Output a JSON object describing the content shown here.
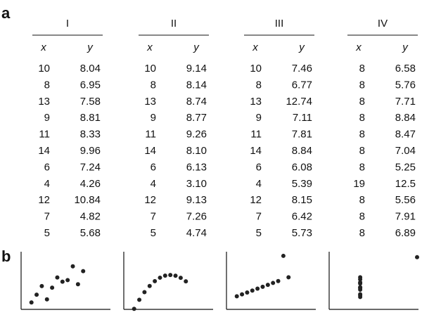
{
  "panel_a": {
    "label": "a",
    "datasets": [
      {
        "title": "I",
        "columns": [
          "x",
          "y"
        ],
        "rows": [
          [
            "10",
            "8.04"
          ],
          [
            "8",
            "6.95"
          ],
          [
            "13",
            "7.58"
          ],
          [
            "9",
            "8.81"
          ],
          [
            "11",
            "8.33"
          ],
          [
            "14",
            "9.96"
          ],
          [
            "6",
            "7.24"
          ],
          [
            "4",
            "4.26"
          ],
          [
            "12",
            "10.84"
          ],
          [
            "7",
            "4.82"
          ],
          [
            "5",
            "5.68"
          ]
        ]
      },
      {
        "title": "II",
        "columns": [
          "x",
          "y"
        ],
        "rows": [
          [
            "10",
            "9.14"
          ],
          [
            "8",
            "8.14"
          ],
          [
            "13",
            "8.74"
          ],
          [
            "9",
            "8.77"
          ],
          [
            "11",
            "9.26"
          ],
          [
            "14",
            "8.10"
          ],
          [
            "6",
            "6.13"
          ],
          [
            "4",
            "3.10"
          ],
          [
            "12",
            "9.13"
          ],
          [
            "7",
            "7.26"
          ],
          [
            "5",
            "4.74"
          ]
        ]
      },
      {
        "title": "III",
        "columns": [
          "x",
          "y"
        ],
        "rows": [
          [
            "10",
            "7.46"
          ],
          [
            "8",
            "6.77"
          ],
          [
            "13",
            "12.74"
          ],
          [
            "9",
            "7.11"
          ],
          [
            "11",
            "7.81"
          ],
          [
            "14",
            "8.84"
          ],
          [
            "6",
            "6.08"
          ],
          [
            "4",
            "5.39"
          ],
          [
            "12",
            "8.15"
          ],
          [
            "7",
            "6.42"
          ],
          [
            "5",
            "5.73"
          ]
        ]
      },
      {
        "title": "IV",
        "columns": [
          "x",
          "y"
        ],
        "rows": [
          [
            "8",
            "6.58"
          ],
          [
            "8",
            "5.76"
          ],
          [
            "8",
            "7.71"
          ],
          [
            "8",
            "8.84"
          ],
          [
            "8",
            "8.47"
          ],
          [
            "8",
            "7.04"
          ],
          [
            "8",
            "5.25"
          ],
          [
            "19",
            "12.5"
          ],
          [
            "8",
            "5.56"
          ],
          [
            "8",
            "7.91"
          ],
          [
            "8",
            "6.89"
          ]
        ]
      }
    ]
  },
  "panel_b": {
    "label": "b",
    "type": "scatter",
    "xlim": [
      2,
      19
    ],
    "ylim": [
      3,
      13.5
    ]
  }
}
